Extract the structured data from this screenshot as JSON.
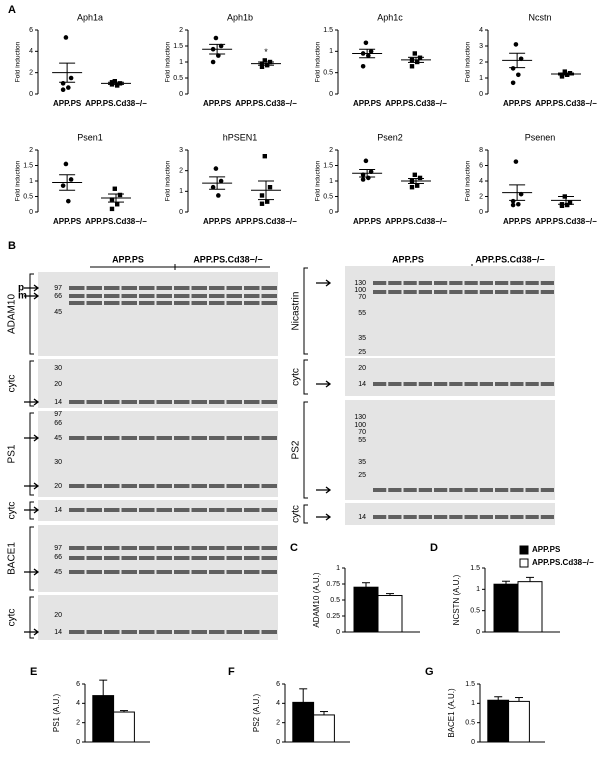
{
  "figure_labels": [
    "A",
    "B"
  ],
  "chart_data": [
    {
      "type": "scatter",
      "title": "Aph1a",
      "ylabel": "Fold induction",
      "categories": [
        "APP.PS",
        "APP.PS.Cd38−/−"
      ],
      "points": [
        [
          5.3,
          1.5,
          1.0,
          0.6,
          0.4
        ],
        [
          1.2,
          1.0,
          0.9,
          0.8,
          1.1
        ]
      ],
      "mean": [
        2.0,
        1.0
      ],
      "sem": [
        0.9,
        0.1
      ],
      "ylim": [
        0,
        6
      ],
      "yticks": [
        0,
        2,
        4,
        6
      ]
    },
    {
      "type": "scatter",
      "title": "Aph1b",
      "ylabel": "Fold induction",
      "categories": [
        "APP.PS",
        "APP.PS.Cd38−/−"
      ],
      "points": [
        [
          1.75,
          1.5,
          1.4,
          1.2,
          1.0
        ],
        [
          1.05,
          1.0,
          0.95,
          0.9,
          0.85
        ]
      ],
      "mean": [
        1.4,
        0.95
      ],
      "sem": [
        0.15,
        0.05
      ],
      "ylim": [
        0,
        2
      ],
      "yticks": [
        0,
        0.5,
        1,
        1.5,
        2
      ],
      "annotation": "*"
    },
    {
      "type": "scatter",
      "title": "Aph1c",
      "ylabel": "Fold induction",
      "categories": [
        "APP.PS",
        "APP.PS.Cd38−/−"
      ],
      "points": [
        [
          1.2,
          1.0,
          0.95,
          0.9,
          0.65
        ],
        [
          0.95,
          0.85,
          0.8,
          0.75,
          0.65
        ]
      ],
      "mean": [
        0.95,
        0.8
      ],
      "sem": [
        0.1,
        0.06
      ],
      "ylim": [
        0,
        1.5
      ],
      "yticks": [
        0,
        0.5,
        1,
        1.5
      ]
    },
    {
      "type": "scatter",
      "title": "Ncstn",
      "ylabel": "Fold induction",
      "categories": [
        "APP.PS",
        "APP.PS.Cd38−/−"
      ],
      "points": [
        [
          3.1,
          2.2,
          1.6,
          1.2,
          0.7
        ],
        [
          1.4,
          1.3,
          1.2,
          1.2,
          1.1
        ]
      ],
      "mean": [
        2.1,
        1.25
      ],
      "sem": [
        0.45,
        0.06
      ],
      "ylim": [
        0,
        4
      ],
      "yticks": [
        0,
        1,
        2,
        3,
        4
      ]
    },
    {
      "type": "scatter",
      "title": "Psen1",
      "ylabel": "Fold induction",
      "categories": [
        "APP.PS",
        "APP.PS.Cd38−/−"
      ],
      "points": [
        [
          1.55,
          1.05,
          0.85,
          0.35
        ],
        [
          0.75,
          0.55,
          0.4,
          0.25,
          0.1
        ]
      ],
      "mean": [
        0.95,
        0.45
      ],
      "sem": [
        0.25,
        0.13
      ],
      "ylim": [
        0,
        2
      ],
      "yticks": [
        0,
        0.5,
        1,
        1.5,
        2
      ]
    },
    {
      "type": "scatter",
      "title": "hPSEN1",
      "ylabel": "Fold induction",
      "categories": [
        "APP.PS",
        "APP.PS.Cd38−/−"
      ],
      "points": [
        [
          2.1,
          1.5,
          1.2,
          0.8
        ],
        [
          2.7,
          1.2,
          0.8,
          0.5,
          0.4
        ]
      ],
      "mean": [
        1.4,
        1.05
      ],
      "sem": [
        0.3,
        0.45
      ],
      "ylim": [
        0,
        3
      ],
      "yticks": [
        0,
        1,
        2,
        3
      ]
    },
    {
      "type": "scatter",
      "title": "Psen2",
      "ylabel": "Fold induction",
      "categories": [
        "APP.PS",
        "APP.PS.Cd38−/−"
      ],
      "points": [
        [
          1.65,
          1.3,
          1.2,
          1.1,
          1.05
        ],
        [
          1.2,
          1.1,
          1.0,
          0.85,
          0.8
        ]
      ],
      "mean": [
        1.25,
        1.0
      ],
      "sem": [
        0.12,
        0.08
      ],
      "ylim": [
        0,
        2
      ],
      "yticks": [
        0,
        0.5,
        1,
        1.5,
        2
      ]
    },
    {
      "type": "scatter",
      "title": "Psenen",
      "ylabel": "Fold induction",
      "categories": [
        "APP.PS",
        "APP.PS.Cd38−/−"
      ],
      "points": [
        [
          6.5,
          2.3,
          1.4,
          1.0,
          0.9
        ],
        [
          2.0,
          1.2,
          1.0,
          0.9,
          0.8
        ]
      ],
      "mean": [
        2.5,
        1.5
      ],
      "sem": [
        1.0,
        0.5
      ],
      "ylim": [
        0,
        8
      ],
      "yticks": [
        0,
        2,
        4,
        6,
        8
      ]
    },
    {
      "type": "bar",
      "panel": "C",
      "ylabel": "ADAM10 (A.U.)",
      "values": [
        0.7,
        0.57
      ],
      "errors": [
        0.07,
        0.03
      ],
      "colors": [
        "#000000",
        "#ffffff"
      ],
      "ylim": [
        0,
        1
      ],
      "yticks": [
        0,
        0.25,
        0.5,
        0.75,
        1
      ]
    },
    {
      "type": "bar",
      "panel": "D",
      "ylabel": "NCSTN (A.U.)",
      "values": [
        1.12,
        1.18
      ],
      "errors": [
        0.07,
        0.1
      ],
      "colors": [
        "#000000",
        "#ffffff"
      ],
      "ylim": [
        0,
        1.5
      ],
      "yticks": [
        0,
        0.5,
        1,
        1.5
      ],
      "legend": [
        "APP.PS",
        "APP.PS.Cd38−/−"
      ]
    },
    {
      "type": "bar",
      "panel": "E",
      "ylabel": "PS1 (A.U.)",
      "values": [
        4.8,
        3.1
      ],
      "errors": [
        1.6,
        0.15
      ],
      "colors": [
        "#000000",
        "#ffffff"
      ],
      "ylim": [
        0,
        6
      ],
      "yticks": [
        0,
        2,
        4,
        6
      ]
    },
    {
      "type": "bar",
      "panel": "F",
      "ylabel": "PS2 (A.U.)",
      "values": [
        4.1,
        2.8
      ],
      "errors": [
        1.4,
        0.35
      ],
      "colors": [
        "#000000",
        "#ffffff"
      ],
      "ylim": [
        0,
        6
      ],
      "yticks": [
        0,
        2,
        4,
        6
      ]
    },
    {
      "type": "bar",
      "panel": "G",
      "ylabel": "BACE1 (A.U.)",
      "values": [
        1.08,
        1.05
      ],
      "errors": [
        0.09,
        0.1
      ],
      "colors": [
        "#000000",
        "#ffffff"
      ],
      "ylim": [
        0,
        1.5
      ],
      "yticks": [
        0,
        0.5,
        1,
        1.5
      ]
    }
  ],
  "blots": {
    "left": {
      "groups": [
        "APP.PS",
        "APP.PS.Cd38−/−"
      ],
      "panels": [
        {
          "label": "ADAM10",
          "markers": [
            97,
            66,
            45
          ],
          "forms": [
            "p",
            "m"
          ]
        },
        {
          "label": "cytc",
          "markers": [
            30,
            20,
            14
          ]
        },
        {
          "label": "PS1",
          "markers": [
            97,
            66,
            45,
            30,
            20
          ]
        },
        {
          "label": "cytc",
          "markers": [
            14
          ]
        },
        {
          "label": "BACE1",
          "markers": [
            97,
            66,
            45
          ]
        },
        {
          "label": "cytc",
          "markers": [
            20,
            14
          ]
        }
      ]
    },
    "right": {
      "groups": [
        "APP.PS",
        "APP.PS.Cd38−/−"
      ],
      "panels": [
        {
          "label": "Nicastrin",
          "markers": [
            130,
            100,
            70,
            55,
            35,
            25
          ]
        },
        {
          "label": "cytc",
          "markers": [
            20,
            14
          ]
        },
        {
          "label": "PS2",
          "markers": [
            130,
            100,
            70,
            55,
            35,
            25
          ]
        },
        {
          "label": "cytc",
          "markers": [
            14
          ]
        }
      ]
    }
  }
}
